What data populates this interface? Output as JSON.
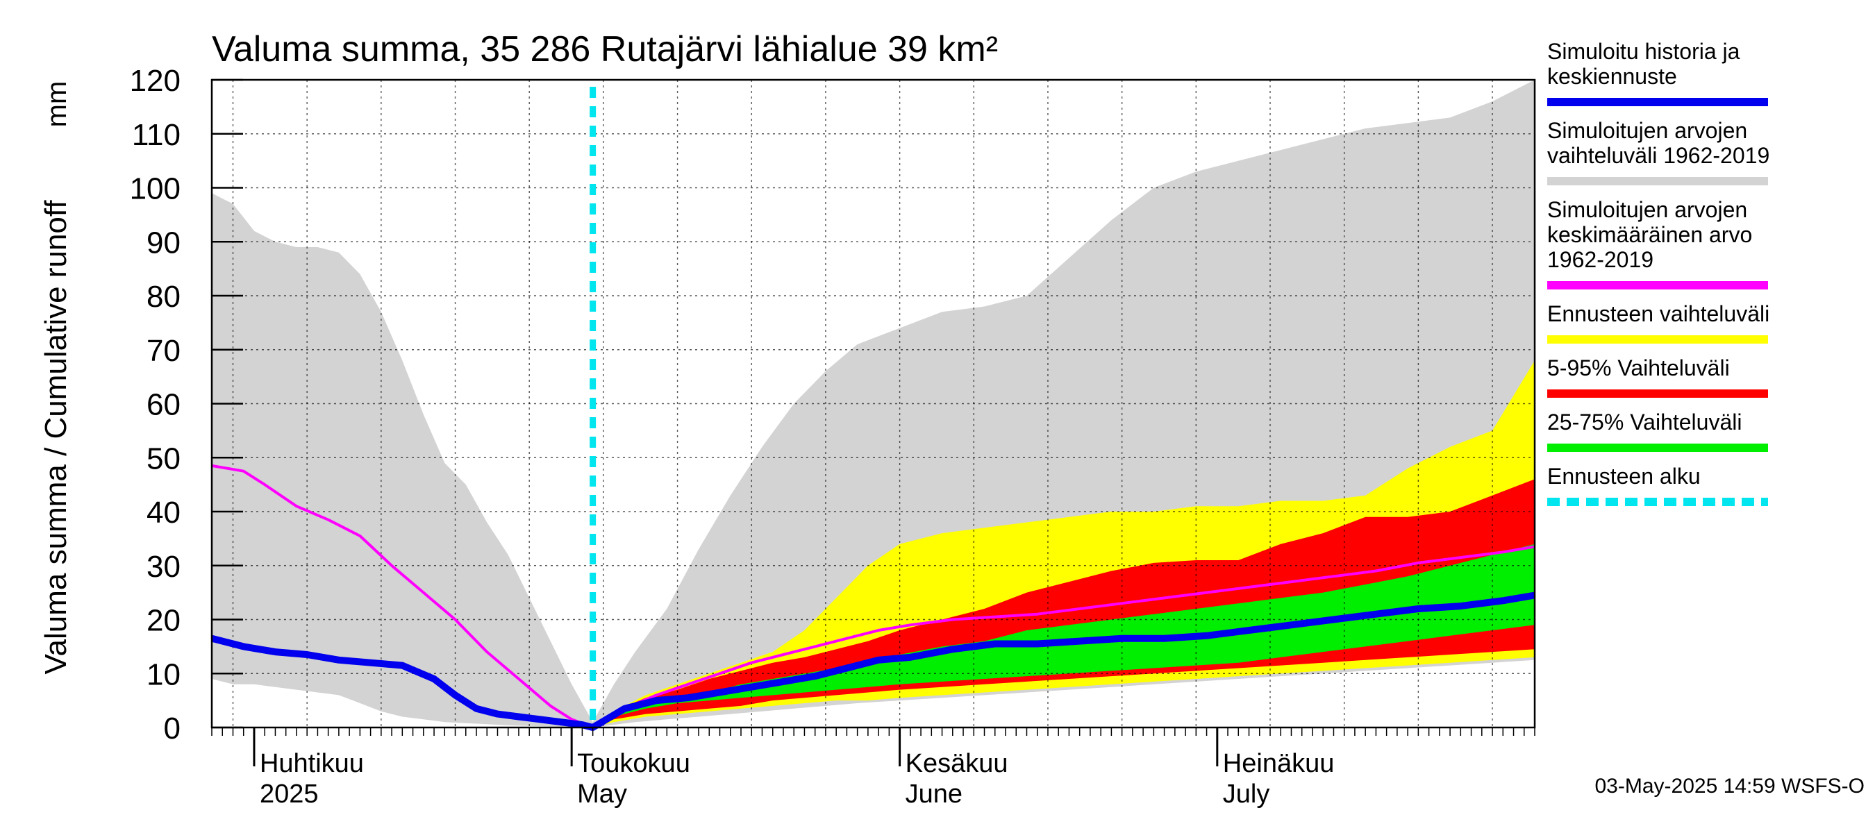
{
  "chart_data": {
    "type": "area",
    "title": "Valuma summa, 35 286 Rutajärvi lähialue 39 km²",
    "ylabel": "Valuma summa / Cumulative runoff",
    "yunit": "mm",
    "ylim": [
      0,
      120
    ],
    "yticks": [
      0,
      10,
      20,
      30,
      40,
      50,
      60,
      70,
      80,
      90,
      100,
      110,
      120
    ],
    "xlim": [
      "2025-03-28",
      "2025-07-31"
    ],
    "grid": true,
    "forecast_start": "2025-05-03",
    "month_labels": [
      {
        "date": "2025-04-01",
        "line1": "Huhtikuu",
        "line2": "2025"
      },
      {
        "date": "2025-05-01",
        "line1": "Toukokuu",
        "line2": "May"
      },
      {
        "date": "2025-06-01",
        "line1": "Kesäkuu",
        "line2": "June"
      },
      {
        "date": "2025-07-01",
        "line1": "Heinäkuu",
        "line2": "July"
      }
    ],
    "timestamp": "03-May-2025 14:59 WSFS-O",
    "legend": [
      {
        "key": "history",
        "lines": [
          "Simuloitu historia ja",
          "keskiennuste"
        ],
        "color": "#0000ee",
        "style": "solid"
      },
      {
        "key": "hist_range",
        "lines": [
          "Simuloitujen arvojen",
          "vaihteluväli 1962-2019"
        ],
        "color": "#d3d3d3",
        "style": "solid"
      },
      {
        "key": "hist_mean",
        "lines": [
          "Simuloitujen arvojen",
          "keskimääräinen arvo",
          "   1962-2019"
        ],
        "color": "#ff00ff",
        "style": "solid"
      },
      {
        "key": "fc_range",
        "lines": [
          "Ennusteen vaihteluväli"
        ],
        "color": "#ffff00",
        "style": "solid"
      },
      {
        "key": "p5_95",
        "lines": [
          "5-95% Vaihteluväli"
        ],
        "color": "#ff0000",
        "style": "solid"
      },
      {
        "key": "p25_75",
        "lines": [
          "25-75% Vaihteluväli"
        ],
        "color": "#00ee00",
        "style": "solid"
      },
      {
        "key": "fc_start",
        "lines": [
          "Ennusteen alku"
        ],
        "color": "#00e5ee",
        "style": "dashed"
      }
    ],
    "series": {
      "hist_range": {
        "name": "Simuloitujen arvojen vaihteluväli 1962-2019",
        "x": [
          "2025-03-28",
          "2025-03-30",
          "2025-04-01",
          "2025-04-03",
          "2025-04-05",
          "2025-04-07",
          "2025-04-09",
          "2025-04-11",
          "2025-04-13",
          "2025-04-15",
          "2025-04-17",
          "2025-04-19",
          "2025-04-21",
          "2025-04-23",
          "2025-04-25",
          "2025-04-27",
          "2025-04-29",
          "2025-05-01",
          "2025-05-03",
          "2025-05-05",
          "2025-05-07",
          "2025-05-10",
          "2025-05-13",
          "2025-05-16",
          "2025-05-19",
          "2025-05-22",
          "2025-05-25",
          "2025-05-28",
          "2025-06-01",
          "2025-06-05",
          "2025-06-09",
          "2025-06-13",
          "2025-06-17",
          "2025-06-21",
          "2025-06-25",
          "2025-06-29",
          "2025-07-03",
          "2025-07-07",
          "2025-07-11",
          "2025-07-15",
          "2025-07-19",
          "2025-07-23",
          "2025-07-27",
          "2025-07-31"
        ],
        "high": [
          99,
          97,
          92,
          90,
          89,
          89,
          88,
          84,
          77,
          68,
          58,
          49,
          45,
          38,
          32,
          24,
          16,
          8,
          1,
          8,
          14,
          22,
          33,
          43,
          52,
          60,
          66,
          71,
          74,
          77,
          78,
          80,
          87,
          94,
          100,
          103,
          105,
          107,
          109,
          111,
          112,
          113,
          116,
          120
        ],
        "low": [
          9,
          8,
          8,
          7.5,
          7,
          6.5,
          6,
          4.5,
          3,
          2,
          1.5,
          1,
          0.8,
          0.6,
          0.4,
          0.3,
          0.2,
          0.1,
          0,
          0.5,
          1,
          1.5,
          2,
          2.5,
          3,
          3.5,
          4,
          4.5,
          5,
          5.5,
          6,
          6.5,
          7,
          7.5,
          8,
          8.5,
          9,
          9.5,
          10,
          10.5,
          11,
          11.5,
          12,
          12.5
        ]
      },
      "fc_range": {
        "name": "Ennusteen vaihteluväli",
        "x": [
          "2025-05-03",
          "2025-05-05",
          "2025-05-08",
          "2025-05-11",
          "2025-05-14",
          "2025-05-17",
          "2025-05-20",
          "2025-05-23",
          "2025-05-26",
          "2025-05-29",
          "2025-06-01",
          "2025-06-05",
          "2025-06-09",
          "2025-06-13",
          "2025-06-17",
          "2025-06-21",
          "2025-06-25",
          "2025-06-29",
          "2025-07-03",
          "2025-07-07",
          "2025-07-11",
          "2025-07-15",
          "2025-07-19",
          "2025-07-23",
          "2025-07-27",
          "2025-07-31"
        ],
        "high": [
          0,
          3,
          6,
          8,
          10,
          12,
          14,
          18,
          24,
          30,
          34,
          36,
          37,
          38,
          39,
          40,
          40,
          41,
          41,
          42,
          42,
          43,
          48,
          52,
          55,
          68
        ],
        "low": [
          0,
          1,
          2,
          2.5,
          3,
          3.5,
          4,
          4.5,
          5,
          5,
          5.5,
          6,
          6.5,
          7,
          7.5,
          8,
          8.5,
          9,
          9.5,
          10,
          10.5,
          11,
          11.5,
          12,
          12.5,
          13
        ]
      },
      "p5_95": {
        "name": "5-95% Vaihteluväli",
        "x": [
          "2025-05-03",
          "2025-05-05",
          "2025-05-08",
          "2025-05-11",
          "2025-05-14",
          "2025-05-17",
          "2025-05-20",
          "2025-05-23",
          "2025-05-26",
          "2025-05-29",
          "2025-06-01",
          "2025-06-05",
          "2025-06-09",
          "2025-06-13",
          "2025-06-17",
          "2025-06-21",
          "2025-06-25",
          "2025-06-29",
          "2025-07-03",
          "2025-07-07",
          "2025-07-11",
          "2025-07-15",
          "2025-07-19",
          "2025-07-23",
          "2025-07-27",
          "2025-07-31"
        ],
        "high": [
          0,
          3,
          5.5,
          7,
          9,
          10.5,
          12,
          13,
          14.5,
          16,
          18,
          20,
          22,
          25,
          27,
          29,
          30.5,
          31,
          31,
          34,
          36,
          39,
          39,
          40,
          43,
          46
        ],
        "low": [
          0,
          1.5,
          2.5,
          3,
          3.5,
          4,
          5,
          5.5,
          6,
          6.5,
          7,
          7.5,
          8,
          8.5,
          9,
          9.5,
          10,
          10.5,
          11,
          11.5,
          12,
          12.5,
          13,
          13.5,
          14,
          14.5
        ]
      },
      "p25_75": {
        "name": "25-75% Vaihteluväli",
        "x": [
          "2025-05-03",
          "2025-05-05",
          "2025-05-08",
          "2025-05-11",
          "2025-05-14",
          "2025-05-17",
          "2025-05-20",
          "2025-05-23",
          "2025-05-26",
          "2025-05-29",
          "2025-06-01",
          "2025-06-05",
          "2025-06-09",
          "2025-06-13",
          "2025-06-17",
          "2025-06-21",
          "2025-06-25",
          "2025-06-29",
          "2025-07-03",
          "2025-07-07",
          "2025-07-11",
          "2025-07-15",
          "2025-07-19",
          "2025-07-23",
          "2025-07-27",
          "2025-07-31"
        ],
        "high": [
          0,
          2.5,
          4.5,
          5.5,
          6.5,
          8,
          9,
          10,
          11,
          12,
          13.5,
          15,
          16,
          18,
          19,
          20,
          21,
          22,
          23,
          24,
          25,
          26.5,
          28,
          30,
          32,
          34
        ],
        "low": [
          0,
          2,
          3.5,
          4.5,
          5,
          5.5,
          6,
          6.5,
          7,
          7.5,
          8,
          8.5,
          9,
          9.5,
          10,
          10.5,
          11,
          11.5,
          12,
          13,
          14,
          15,
          16,
          17,
          18,
          19
        ]
      },
      "hist_mean": {
        "name": "Simuloitujen arvojen keskimääräinen arvo 1962-2019",
        "x": [
          "2025-03-28",
          "2025-03-31",
          "2025-04-02",
          "2025-04-05",
          "2025-04-08",
          "2025-04-11",
          "2025-04-14",
          "2025-04-17",
          "2025-04-20",
          "2025-04-23",
          "2025-04-26",
          "2025-04-29",
          "2025-05-01",
          "2025-05-03",
          "2025-05-06",
          "2025-05-09",
          "2025-05-12",
          "2025-05-15",
          "2025-05-18",
          "2025-05-21",
          "2025-05-24",
          "2025-05-27",
          "2025-05-30",
          "2025-06-02",
          "2025-06-06",
          "2025-06-10",
          "2025-06-14",
          "2025-06-18",
          "2025-06-22",
          "2025-06-26",
          "2025-06-30",
          "2025-07-04",
          "2025-07-08",
          "2025-07-12",
          "2025-07-16",
          "2025-07-20",
          "2025-07-24",
          "2025-07-28",
          "2025-07-31"
        ],
        "values": [
          48.5,
          47.5,
          45,
          41,
          38.5,
          35.5,
          30,
          25,
          20,
          14,
          9,
          4,
          1.5,
          0,
          3.5,
          6,
          8,
          10,
          12,
          13.5,
          15,
          16.5,
          18,
          19,
          20,
          20.5,
          21,
          22,
          23,
          24,
          25,
          26,
          27,
          28,
          29,
          30.5,
          31.5,
          32.5,
          33.5
        ]
      },
      "history": {
        "name": "Simuloitu historia ja keskiennuste",
        "x": [
          "2025-03-28",
          "2025-03-31",
          "2025-04-03",
          "2025-04-06",
          "2025-04-09",
          "2025-04-12",
          "2025-04-15",
          "2025-04-18",
          "2025-04-20",
          "2025-04-22",
          "2025-04-24",
          "2025-04-26",
          "2025-04-28",
          "2025-04-30",
          "2025-05-02",
          "2025-05-03",
          "2025-05-06",
          "2025-05-09",
          "2025-05-12",
          "2025-05-15",
          "2025-05-18",
          "2025-05-21",
          "2025-05-24",
          "2025-05-27",
          "2025-05-30",
          "2025-06-02",
          "2025-06-06",
          "2025-06-10",
          "2025-06-14",
          "2025-06-18",
          "2025-06-22",
          "2025-06-26",
          "2025-06-30",
          "2025-07-04",
          "2025-07-08",
          "2025-07-12",
          "2025-07-16",
          "2025-07-20",
          "2025-07-24",
          "2025-07-28",
          "2025-07-31"
        ],
        "values": [
          16.5,
          15,
          14,
          13.5,
          12.5,
          12,
          11.5,
          9,
          6,
          3.5,
          2.5,
          2,
          1.5,
          1,
          0.5,
          0,
          3.5,
          5,
          5.5,
          6.5,
          7.5,
          8.5,
          9.5,
          11,
          12.5,
          13,
          14.5,
          15.5,
          15.5,
          16,
          16.5,
          16.5,
          17,
          18,
          19,
          20,
          21,
          22,
          22.5,
          23.5,
          24.5
        ]
      }
    }
  }
}
